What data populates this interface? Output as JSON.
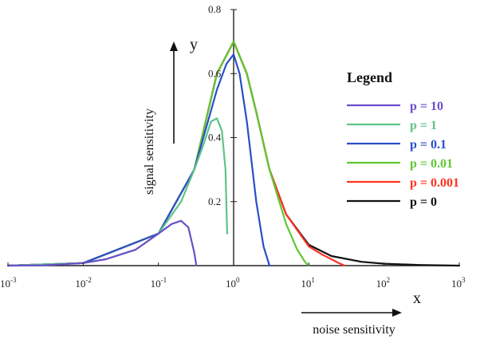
{
  "chart_data": {
    "type": "line",
    "xscale": "log",
    "xlim": [
      0.001,
      1000
    ],
    "ylim": [
      0,
      0.8
    ],
    "xlabel": "x",
    "ylabel": "y",
    "y_side_label": "signal sensitivity",
    "x_bottom_label": "noise sensitivity",
    "x_ticks": [
      {
        "base": "10",
        "exp": "-3",
        "value": 0.001
      },
      {
        "base": "10",
        "exp": "-2",
        "value": 0.01
      },
      {
        "base": "10",
        "exp": "-1",
        "value": 0.1
      },
      {
        "base": "10",
        "exp": "0",
        "value": 1
      },
      {
        "base": "10",
        "exp": "1",
        "value": 10
      },
      {
        "base": "10",
        "exp": "2",
        "value": 100
      },
      {
        "base": "10",
        "exp": "3",
        "value": 1000
      }
    ],
    "y_ticks": [
      {
        "label": "0.2",
        "value": 0.2
      },
      {
        "label": "0.4",
        "value": 0.4
      },
      {
        "label": "0.6",
        "value": 0.6
      },
      {
        "label": "0.8",
        "value": 0.8
      }
    ],
    "legend_title": "Legend",
    "legend_position": "right",
    "series": [
      {
        "name": "p = 10",
        "color": "#6a4fc8",
        "x": [
          0.001,
          0.003,
          0.01,
          0.02,
          0.05,
          0.1,
          0.15,
          0.2,
          0.25,
          0.3,
          0.32
        ],
        "y": [
          0,
          0.001,
          0.008,
          0.02,
          0.05,
          0.1,
          0.13,
          0.14,
          0.12,
          0.04,
          0
        ]
      },
      {
        "name": "p = 1",
        "color": "#5ec48a",
        "x": [
          0.001,
          0.01,
          0.02,
          0.05,
          0.1,
          0.2,
          0.3,
          0.4,
          0.5,
          0.6,
          0.7,
          0.78,
          0.82
        ],
        "y": [
          0,
          0.008,
          0.02,
          0.05,
          0.1,
          0.2,
          0.3,
          0.38,
          0.45,
          0.46,
          0.42,
          0.3,
          0.1
        ]
      },
      {
        "name": "p = 0.1",
        "color": "#2a4fc8",
        "x": [
          0.001,
          0.01,
          0.1,
          0.3,
          0.6,
          0.8,
          1.0,
          1.2,
          1.5,
          2.0,
          2.5,
          3.0
        ],
        "y": [
          0,
          0.008,
          0.1,
          0.3,
          0.55,
          0.63,
          0.66,
          0.6,
          0.45,
          0.2,
          0.06,
          0
        ]
      },
      {
        "name": "p = 0.01",
        "color": "#5fc832",
        "x": [
          0.001,
          0.01,
          0.1,
          0.3,
          0.6,
          1.0,
          1.5,
          2.0,
          3.0,
          5.0,
          7.0,
          9.0,
          10.0
        ],
        "y": [
          0,
          0.008,
          0.1,
          0.3,
          0.6,
          0.7,
          0.6,
          0.48,
          0.3,
          0.13,
          0.05,
          0.01,
          0
        ]
      },
      {
        "name": "p = 0.001",
        "color": "#ff3322",
        "x": [
          0.001,
          0.01,
          0.1,
          0.3,
          0.6,
          1.0,
          1.5,
          2.0,
          3.0,
          5.0,
          10.0,
          15.0,
          20.0,
          25.0,
          30.0
        ],
        "y": [
          0,
          0.008,
          0.1,
          0.3,
          0.6,
          0.7,
          0.6,
          0.48,
          0.3,
          0.16,
          0.06,
          0.035,
          0.02,
          0.008,
          0
        ]
      },
      {
        "name": "p = 0",
        "color": "#111111",
        "x": [
          0.001,
          0.01,
          0.1,
          0.3,
          0.6,
          1.0,
          1.5,
          2.0,
          3.0,
          5.0,
          10.0,
          20.0,
          50.0,
          100.0,
          300.0,
          1000.0
        ],
        "y": [
          0,
          0.008,
          0.1,
          0.3,
          0.6,
          0.7,
          0.6,
          0.48,
          0.3,
          0.16,
          0.065,
          0.03,
          0.012,
          0.006,
          0.002,
          0
        ]
      }
    ]
  }
}
